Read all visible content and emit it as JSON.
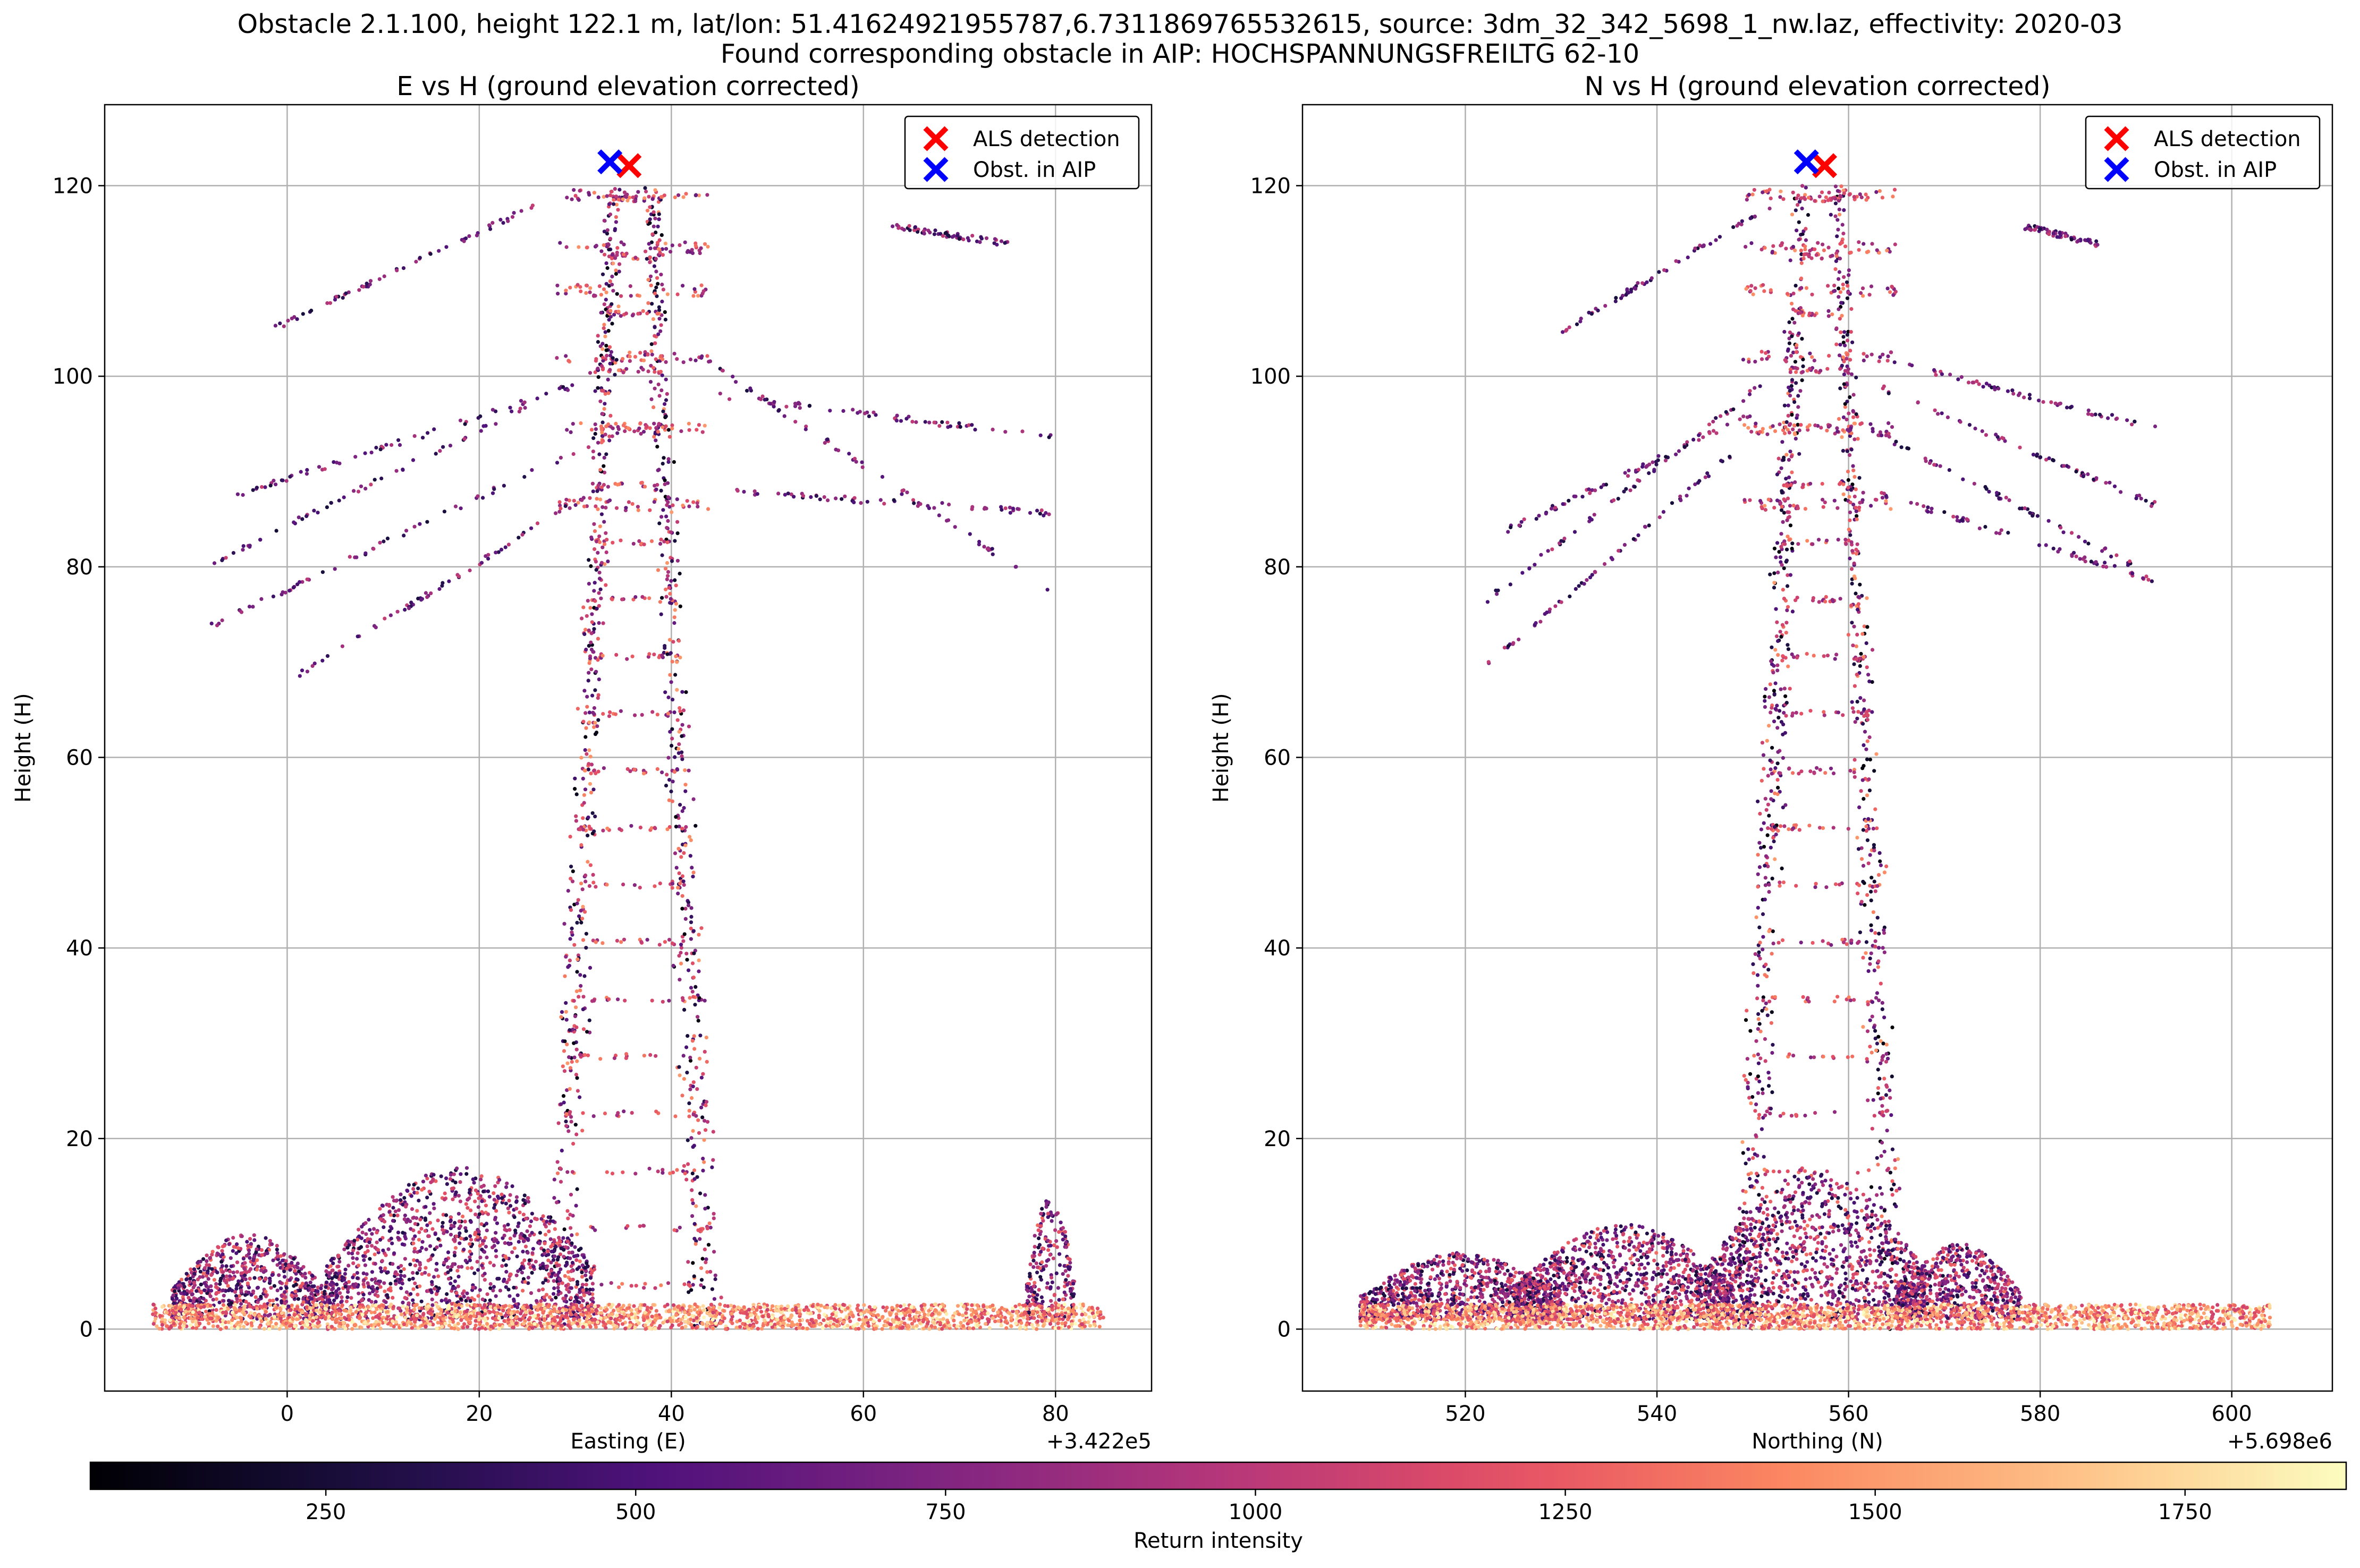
{
  "figure": {
    "title_line1": "Obstacle 2.1.100, height 122.1 m, lat/lon: 51.41624921955787,6.7311869765532615, source: 3dm_32_342_5698_1_nw.laz, effectivity: 2020-03",
    "title_line2": "Found corresponding obstacle in AIP: HOCHSPANNUNGSFREILTG 62-10"
  },
  "colors": {
    "als_detection": "#ff0000",
    "obst_in_aip": "#0000ff",
    "grid": "#b0b0b0",
    "colormap": "magma"
  },
  "chart_data": [
    {
      "type": "scatter",
      "title": "E vs H (ground elevation corrected)",
      "xlabel": "Easting (E)",
      "ylabel": "Height (H)",
      "x_offset_label": "+3.422e5",
      "xlim": [
        -19,
        90
      ],
      "ylim": [
        -6.5,
        128.5
      ],
      "xticks": [
        0,
        20,
        40,
        60,
        80
      ],
      "yticks": [
        0,
        20,
        40,
        60,
        80,
        100,
        120
      ],
      "grid": true,
      "legend_position": "upper right",
      "legend": [
        "ALS detection",
        "Obst. in AIP"
      ],
      "als_detection": {
        "x": 35.6,
        "y": 122.1
      },
      "obst_in_aip": {
        "x": 33.6,
        "y": 122.5
      },
      "colorbar_field": "Return intensity",
      "point_cloud": {
        "description_free_values_only": true,
        "tower_x_range": [
          28,
          44
        ],
        "tower_top_y": 120,
        "vegetation_clusters": [
          {
            "x_range": [
              -12,
              4
            ],
            "y_top": 10
          },
          {
            "x_range": [
              4,
              32
            ],
            "y_top": 17
          },
          {
            "x_range": [
              77,
              82
            ],
            "y_top": 14
          }
        ],
        "ground_x_range": [
          -14,
          85
        ],
        "conductor_lines": [
          {
            "x": [
              -2,
              26
            ],
            "y": [
              104.7,
              118
            ]
          },
          {
            "x": [
              -8,
              35
            ],
            "y": [
              80.3,
              102
            ]
          },
          {
            "x": [
              -8,
              35
            ],
            "y": [
              73.8,
              94.5
            ]
          },
          {
            "x": [
              1,
              32
            ],
            "y": [
              68.6,
              88
            ]
          },
          {
            "x": [
              -6,
              30
            ],
            "y": [
              87.3,
              99
            ]
          },
          {
            "x": [
              43,
              80
            ],
            "y": [
              102,
              77.2
            ]
          },
          {
            "x": [
              45,
              80
            ],
            "y": [
              98,
              93.5
            ]
          },
          {
            "x": [
              45,
              80
            ],
            "y": [
              88,
              85.6
            ]
          },
          {
            "x": [
              63,
              75
            ],
            "y": [
              115.8,
              113.9
            ]
          }
        ]
      }
    },
    {
      "type": "scatter",
      "title": "N vs H (ground elevation corrected)",
      "xlabel": "Northing (N)",
      "ylabel": "Height (H)",
      "x_offset_label": "+5.698e6",
      "xlim": [
        503,
        610.5
      ],
      "ylim": [
        -6.5,
        128.5
      ],
      "xticks": [
        520,
        540,
        560,
        580,
        600
      ],
      "yticks": [
        0,
        20,
        40,
        60,
        80,
        100,
        120
      ],
      "grid": true,
      "legend_position": "upper right",
      "legend": [
        "ALS detection",
        "Obst. in AIP"
      ],
      "als_detection": {
        "x": 557.5,
        "y": 122.1
      },
      "obst_in_aip": {
        "x": 555.6,
        "y": 122.5
      },
      "colorbar_field": "Return intensity",
      "point_cloud": {
        "tower_x_range": [
          549,
          565
        ],
        "tower_top_y": 120,
        "vegetation_clusters": [
          {
            "x_range": [
              509,
              530
            ],
            "y_top": 8
          },
          {
            "x_range": [
              525,
              548
            ],
            "y_top": 11
          },
          {
            "x_range": [
              545,
              568
            ],
            "y_top": 16.5
          },
          {
            "x_range": [
              565,
              578
            ],
            "y_top": 9
          }
        ],
        "ground_x_range": [
          509,
          604
        ],
        "conductor_lines": [
          {
            "x": [
              530,
              552
            ],
            "y": [
              104.7,
              118
            ]
          },
          {
            "x": [
              522,
              552
            ],
            "y": [
              76.3,
              100
            ]
          },
          {
            "x": [
              521,
              548
            ],
            "y": [
              68.6,
              92
            ]
          },
          {
            "x": [
              524,
              550
            ],
            "y": [
              83.7,
              96
            ]
          },
          {
            "x": [
              563,
              592
            ],
            "y": [
              102,
              94.5
            ]
          },
          {
            "x": [
              563,
              592
            ],
            "y": [
              99,
              86.5
            ]
          },
          {
            "x": [
              562,
              592
            ],
            "y": [
              88,
              78.5
            ]
          },
          {
            "x": [
              563,
              590
            ],
            "y": [
              94,
              80
            ]
          },
          {
            "x": [
              578,
              586
            ],
            "y": [
              115.8,
              113.9
            ]
          }
        ]
      }
    }
  ],
  "colorbar": {
    "label": "Return intensity",
    "vmin": 60,
    "vmax": 1880,
    "ticks": [
      250,
      500,
      750,
      1000,
      1250,
      1500,
      1750
    ],
    "tick_labels": [
      "250",
      "500",
      "750",
      "1000",
      "1250",
      "1500",
      "1750"
    ]
  }
}
